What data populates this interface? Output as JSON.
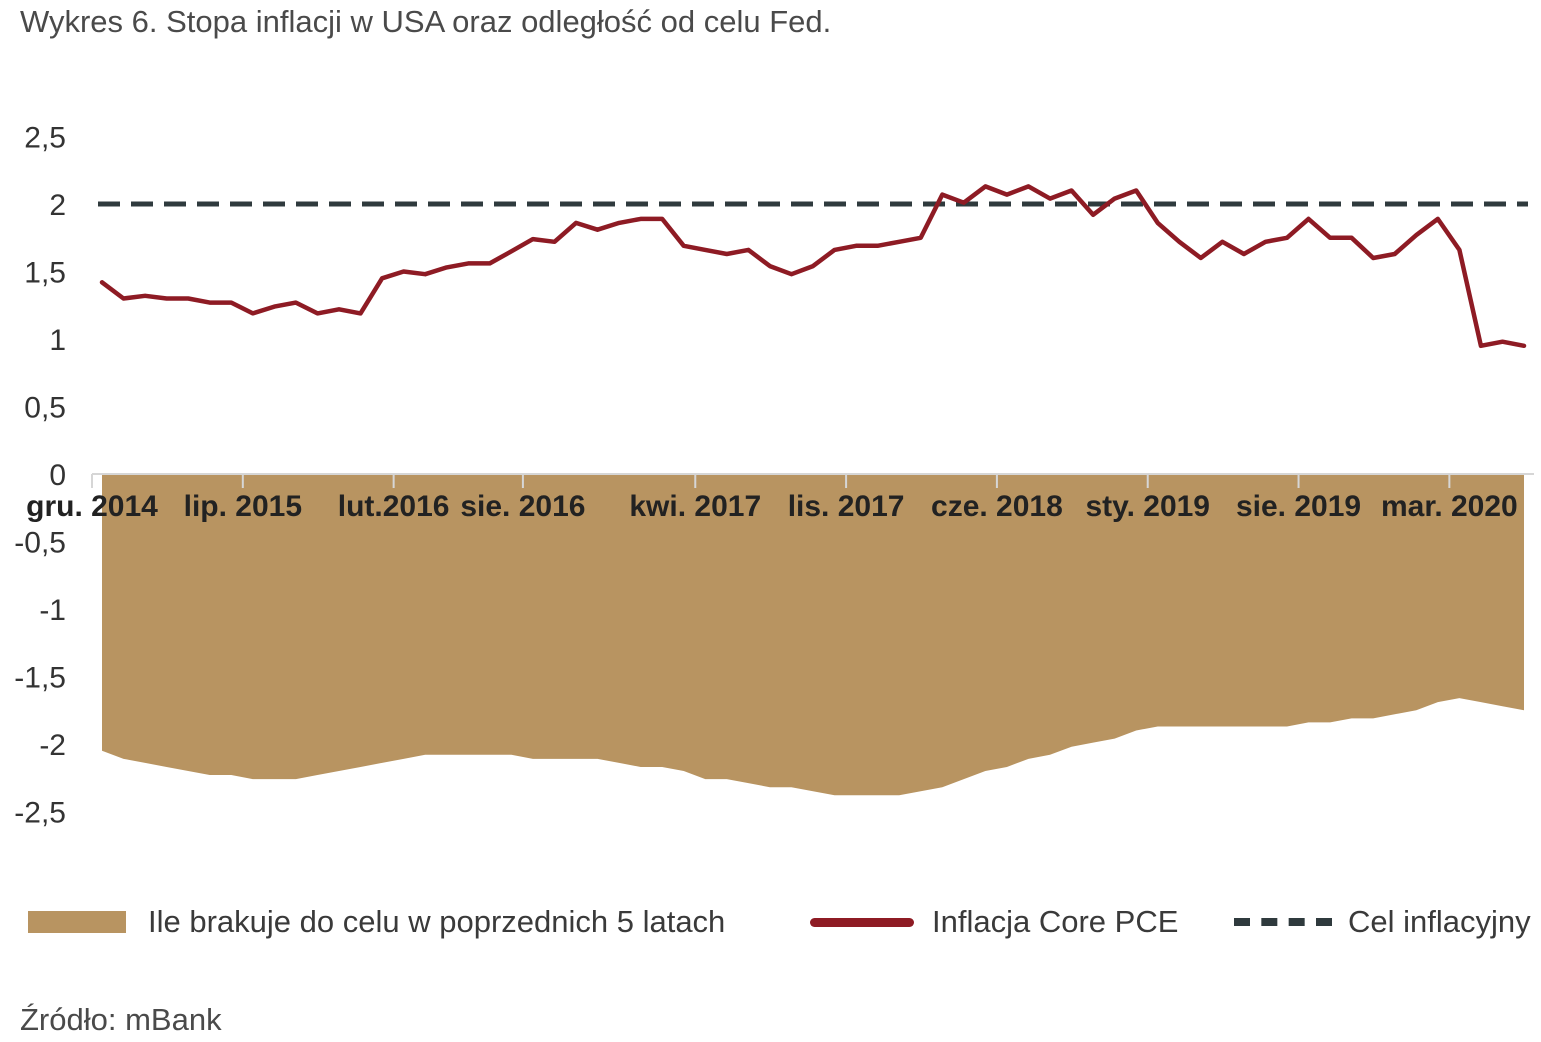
{
  "title": "Wykres 6. Stopa inflacji w USA oraz odległość od celu Fed.",
  "source": "Źródło: mBank",
  "chart_data": {
    "type": "line",
    "y_ticks": [
      "2,5",
      "2",
      "1,5",
      "1",
      "0,5",
      "0",
      "-0,5",
      "-1",
      "-1,5",
      "-2",
      "-2,5"
    ],
    "y_tick_values": [
      2.5,
      2,
      1.5,
      1,
      0.5,
      0,
      -0.5,
      -1,
      -1.5,
      -2,
      -2.5
    ],
    "ylim": [
      -2.5,
      2.5
    ],
    "x_tick_labels": [
      "gru. 2014",
      "lip. 2015",
      "lut.2016",
      "sie. 2016",
      "kwi. 2017",
      "lis. 2017",
      "cze. 2018",
      "sty. 2019",
      "sie. 2019",
      "mar. 2020"
    ],
    "x_tick_index": [
      0,
      7,
      14,
      20,
      28,
      35,
      42,
      49,
      56,
      63
    ],
    "series": [
      {
        "name": "Ile brakuje do celu w poprzednich 5 latach",
        "type": "area",
        "color": "#b89461",
        "values": [
          -2.05,
          -2.11,
          -2.14,
          -2.17,
          -2.2,
          -2.23,
          -2.23,
          -2.26,
          -2.26,
          -2.26,
          -2.23,
          -2.2,
          -2.17,
          -2.14,
          -2.11,
          -2.08,
          -2.08,
          -2.08,
          -2.08,
          -2.08,
          -2.11,
          -2.11,
          -2.11,
          -2.11,
          -2.14,
          -2.17,
          -2.17,
          -2.2,
          -2.26,
          -2.26,
          -2.29,
          -2.32,
          -2.32,
          -2.35,
          -2.38,
          -2.38,
          -2.38,
          -2.38,
          -2.35,
          -2.32,
          -2.26,
          -2.2,
          -2.17,
          -2.11,
          -2.08,
          -2.02,
          -1.99,
          -1.96,
          -1.9,
          -1.87,
          -1.87,
          -1.87,
          -1.87,
          -1.87,
          -1.87,
          -1.87,
          -1.84,
          -1.84,
          -1.81,
          -1.81,
          -1.78,
          -1.75,
          -1.69,
          -1.66,
          -1.69,
          -1.72,
          -1.75
        ]
      },
      {
        "name": "Inflacja Core PCE",
        "type": "line",
        "color": "#8e1b24",
        "values": [
          1.42,
          1.3,
          1.32,
          1.3,
          1.3,
          1.27,
          1.27,
          1.19,
          1.24,
          1.27,
          1.19,
          1.22,
          1.19,
          1.45,
          1.5,
          1.48,
          1.53,
          1.56,
          1.56,
          1.65,
          1.74,
          1.72,
          1.86,
          1.81,
          1.86,
          1.89,
          1.89,
          1.69,
          1.66,
          1.63,
          1.66,
          1.54,
          1.48,
          1.54,
          1.66,
          1.69,
          1.69,
          1.72,
          1.75,
          2.07,
          2.01,
          2.13,
          2.07,
          2.13,
          2.04,
          2.1,
          1.92,
          2.04,
          2.1,
          1.86,
          1.72,
          1.6,
          1.72,
          1.63,
          1.72,
          1.75,
          1.89,
          1.75,
          1.75,
          1.6,
          1.63,
          1.77,
          1.89,
          1.66,
          0.95,
          0.98,
          0.95
        ]
      },
      {
        "name": "Cel inflacyjny",
        "type": "line",
        "style": "dashed",
        "color": "#2f3a3d",
        "values": [
          2,
          2
        ]
      }
    ],
    "legend_position": "bottom",
    "grid": false
  }
}
